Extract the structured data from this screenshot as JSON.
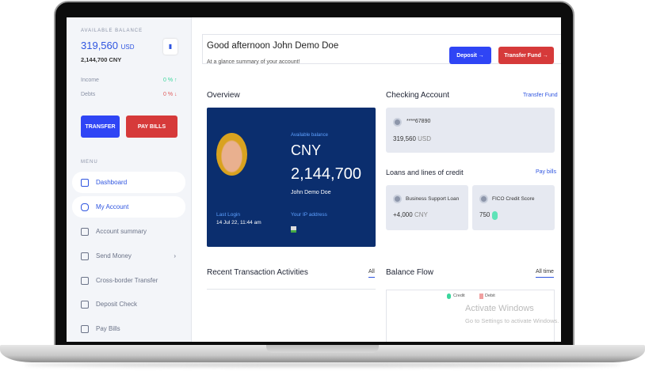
{
  "sidebar": {
    "balance_label": "AVAILABLE BALANCE",
    "balance_usd": "319,560",
    "usd": "USD",
    "balance_cny": "2,144,700 CNY",
    "income_label": "Income",
    "income_value": "0 % ↑",
    "debts_label": "Debts",
    "debts_value": "0 % ↓",
    "transfer_label": "TRANSFER",
    "pay_bills_label": "PAY BILLS",
    "menu_label": "MENU",
    "items": [
      {
        "label": "Dashboard",
        "icon": "grid-icon"
      },
      {
        "label": "My Account",
        "icon": "user-icon"
      },
      {
        "label": "Account summary",
        "icon": "document-icon"
      },
      {
        "label": "Send Money",
        "icon": "send-icon"
      },
      {
        "label": "Cross-border Transfer",
        "icon": "transfer-icon"
      },
      {
        "label": "Deposit Check",
        "icon": "check-icon"
      },
      {
        "label": "Pay Bills",
        "icon": "bill-icon"
      }
    ]
  },
  "header": {
    "greeting": "Good afternoon John Demo Doe",
    "subtitle": "At a glance summary of your account!",
    "deposit_label": "Deposit →",
    "transfer_label": "Transfer Fund →"
  },
  "overview": {
    "title": "Overview",
    "available_label": "Available balance",
    "currency": "CNY",
    "amount": "2,144,700",
    "name": "John Demo Doe",
    "last_login_label": "Last Login",
    "last_login": "14 Jul 22, 11:44 am",
    "ip_label": "Your IP address"
  },
  "checking": {
    "title": "Checking Account",
    "link": "Transfer Fund",
    "account": "****67890",
    "amount": "319,560",
    "currency": "USD"
  },
  "loans": {
    "title": "Loans and lines of credit",
    "link": "Pay bills",
    "loan_name": "Business Support Loan",
    "loan_amount": "+4,000",
    "loan_currency": "CNY",
    "fico_name": "FICO Credit Score",
    "fico_value": "750"
  },
  "recent": {
    "title": "Recent Transaction Activities",
    "tab": "All"
  },
  "flow": {
    "title": "Balance Flow",
    "tab": "All time",
    "legend_credit": "Credit",
    "legend_debit": "Debit"
  },
  "watermark": {
    "line1": "Activate Windows",
    "line2": "Go to Settings to activate Windows."
  },
  "colors": {
    "primary": "#2f45f5",
    "danger": "#d63a3a",
    "navy": "#0b2e6e",
    "green": "#5fe3b8"
  }
}
